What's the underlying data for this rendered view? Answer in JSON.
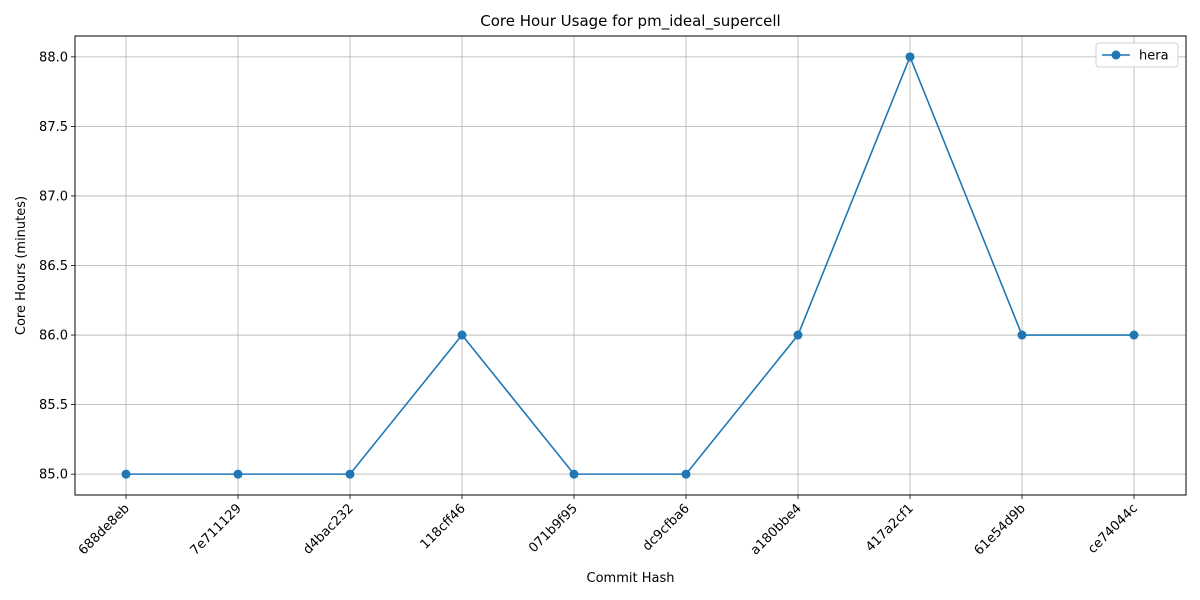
{
  "chart_data": {
    "type": "line",
    "title": "Core Hour Usage for pm_ideal_supercell",
    "xlabel": "Commit Hash",
    "ylabel": "Core Hours (minutes)",
    "categories": [
      "688de8eb",
      "7e711129",
      "d4bac232",
      "118cff46",
      "071b9f95",
      "dc9cfba6",
      "a180bbe4",
      "417a2cf1",
      "61e54d9b",
      "ce74044c"
    ],
    "series": [
      {
        "name": "hera",
        "values": [
          85,
          85,
          85,
          86,
          85,
          85,
          86,
          88,
          86,
          86
        ],
        "color": "#1f77b4",
        "marker": "circle"
      }
    ],
    "ylim": [
      84.85,
      88.15
    ],
    "yticks": [
      85.0,
      85.5,
      86.0,
      86.5,
      87.0,
      87.5,
      88.0
    ],
    "ytick_labels": [
      "85.0",
      "85.5",
      "86.0",
      "86.5",
      "87.0",
      "87.5",
      "88.0"
    ],
    "grid": true,
    "legend_position": "top-right"
  }
}
